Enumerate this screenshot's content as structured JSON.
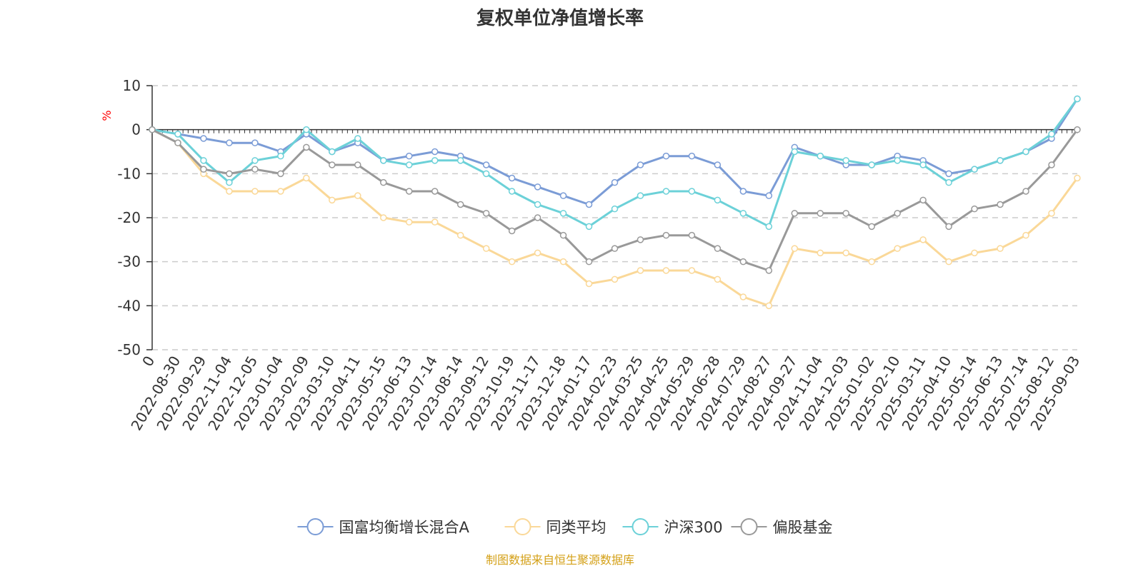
{
  "chart_data": {
    "type": "line",
    "title": "复权单位净值增长率",
    "ylabel": "%",
    "ylim": [
      -50,
      10
    ],
    "yticks": [
      10,
      0,
      -10,
      -20,
      -30,
      -40,
      -50
    ],
    "grid": "horizontal-dashed",
    "legend_position": "bottom",
    "x": [
      "0",
      "2022-08-30",
      "2022-09-29",
      "2022-11-04",
      "2022-12-05",
      "2023-01-04",
      "2023-02-09",
      "2023-03-10",
      "2023-04-11",
      "2023-05-15",
      "2023-06-13",
      "2023-07-14",
      "2023-08-14",
      "2023-09-12",
      "2023-10-19",
      "2023-11-17",
      "2023-12-18",
      "2024-01-17",
      "2024-02-23",
      "2024-03-25",
      "2024-04-25",
      "2024-05-29",
      "2024-06-28",
      "2024-07-29",
      "2024-08-27",
      "2024-09-27",
      "2024-11-04",
      "2024-12-03",
      "2025-01-02",
      "2025-02-10",
      "2025-03-11",
      "2025-04-10",
      "2025-05-14",
      "2025-06-13",
      "2025-07-14",
      "2025-08-12",
      "2025-09-03"
    ],
    "series": [
      {
        "name": "国富均衡增长混合A",
        "color": "#7B9CD6",
        "values": [
          0,
          -1,
          -2,
          -3,
          -3,
          -5,
          -1,
          -5,
          -3,
          -7,
          -6,
          -5,
          -6,
          -8,
          -11,
          -13,
          -15,
          -17,
          -12,
          -8,
          -6,
          -6,
          -8,
          -14,
          -15,
          -4,
          -6,
          -8,
          -8,
          -6,
          -7,
          -10,
          -9,
          -7,
          -5,
          -2,
          7
        ]
      },
      {
        "name": "同类平均",
        "color": "#FAD898",
        "values": [
          0,
          -3,
          -10,
          -14,
          -14,
          -14,
          -11,
          -16,
          -15,
          -20,
          -21,
          -21,
          -24,
          -27,
          -30,
          -28,
          -30,
          -35,
          -34,
          -32,
          -32,
          -32,
          -34,
          -38,
          -40,
          -27,
          -28,
          -28,
          -30,
          -27,
          -25,
          -30,
          -28,
          -27,
          -24,
          -19,
          -11
        ]
      },
      {
        "name": "沪深300",
        "color": "#6CD1D8",
        "values": [
          0,
          -1,
          -7,
          -12,
          -7,
          -6,
          0,
          -5,
          -2,
          -7,
          -8,
          -7,
          -7,
          -10,
          -14,
          -17,
          -19,
          -22,
          -18,
          -15,
          -14,
          -14,
          -16,
          -19,
          -22,
          -5,
          -6,
          -7,
          -8,
          -7,
          -8,
          -12,
          -9,
          -7,
          -5,
          -1,
          7
        ]
      },
      {
        "name": "偏股基金",
        "color": "#999999",
        "values": [
          0,
          -3,
          -9,
          -10,
          -9,
          -10,
          -4,
          -8,
          -8,
          -12,
          -14,
          -14,
          -17,
          -19,
          -23,
          -20,
          -24,
          -30,
          -27,
          -25,
          -24,
          -24,
          -27,
          -30,
          -32,
          -19,
          -19,
          -19,
          -22,
          -19,
          -16,
          -22,
          -18,
          -17,
          -14,
          -8,
          0
        ]
      }
    ]
  },
  "source_note": "制图数据来自恒生聚源数据库",
  "colors": {
    "title": "#333333",
    "axis": "#333333",
    "grid": "#cccccc",
    "ylabel": "#ff0000",
    "source": "#d4a017"
  }
}
